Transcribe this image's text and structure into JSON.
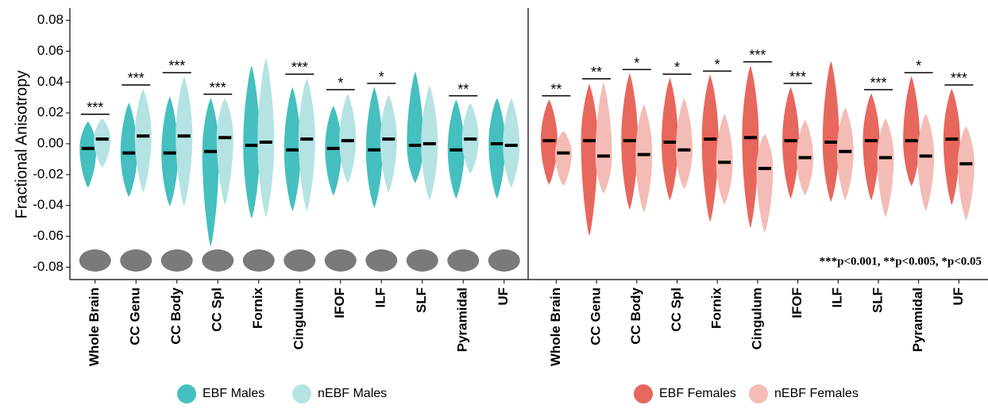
{
  "chart_data": [
    {
      "type": "violin",
      "ylabel": "Fractional Anisotropy",
      "categories": [
        "Whole Brain",
        "CC Genu",
        "CC Body",
        "CC Spl",
        "Fornix",
        "Cingulum",
        "IFOF",
        "ILF",
        "SLF",
        "Pyramidal",
        "UF"
      ],
      "ylim": [
        -0.088,
        0.088
      ],
      "yticks": [
        -0.08,
        -0.06,
        -0.04,
        -0.02,
        {
          "value": 0,
          "label": "0.00"
        },
        0.02,
        0.04,
        0.06,
        0.08
      ],
      "significance": [
        "***",
        "***",
        "***",
        "***",
        null,
        "***",
        "*",
        "*",
        null,
        "**",
        null
      ],
      "series": [
        {
          "name": "EBF Males",
          "color": "#45bfbf",
          "values": [
            -0.003,
            -0.006,
            -0.006,
            -0.005,
            -0.001,
            -0.004,
            -0.003,
            -0.004,
            -0.001,
            -0.004,
            0.0
          ],
          "min": [
            -0.028,
            -0.034,
            -0.04,
            -0.066,
            -0.048,
            -0.043,
            -0.033,
            -0.041,
            -0.025,
            -0.035,
            -0.035
          ],
          "max": [
            0.014,
            0.026,
            0.03,
            0.029,
            0.05,
            0.036,
            0.024,
            0.036,
            0.046,
            0.028,
            0.029
          ]
        },
        {
          "name": "nEBF Males",
          "color": "#b5e3e3",
          "values": [
            0.003,
            0.005,
            0.005,
            0.004,
            0.001,
            0.003,
            0.002,
            0.003,
            0.0,
            0.003,
            -0.001
          ],
          "min": [
            -0.015,
            -0.031,
            -0.04,
            -0.039,
            -0.047,
            -0.043,
            -0.025,
            -0.031,
            -0.036,
            -0.019,
            -0.028
          ],
          "max": [
            0.016,
            0.035,
            0.043,
            0.029,
            0.055,
            0.042,
            0.032,
            0.031,
            0.037,
            0.026,
            0.029
          ]
        }
      ]
    },
    {
      "type": "violin",
      "categories": [
        "Whole Brain",
        "CC Genu",
        "CC Body",
        "CC Spl",
        "Fornix",
        "Cingulum",
        "IFOF",
        "ILF",
        "SLF",
        "Pyramidal",
        "UF"
      ],
      "ylim": [
        -0.088,
        0.088
      ],
      "significance": [
        "**",
        "**",
        "*",
        "*",
        "*",
        "***",
        "***",
        null,
        "***",
        "*",
        "***"
      ],
      "note": "***p<0.001, **p<0.005, *p<0.05",
      "series": [
        {
          "name": "EBF Females",
          "color": "#e8675c",
          "values": [
            0.002,
            0.002,
            0.002,
            0.001,
            0.003,
            0.004,
            0.002,
            0.001,
            0.002,
            0.002,
            0.003
          ],
          "min": [
            -0.026,
            -0.059,
            -0.042,
            -0.036,
            -0.05,
            -0.054,
            -0.035,
            -0.037,
            -0.036,
            -0.027,
            -0.039
          ],
          "max": [
            0.028,
            0.038,
            0.045,
            0.042,
            0.044,
            0.05,
            0.036,
            0.053,
            0.032,
            0.043,
            0.035
          ]
        },
        {
          "name": "nEBF Females",
          "color": "#f4bcb6",
          "values": [
            -0.006,
            -0.008,
            -0.007,
            -0.004,
            -0.012,
            -0.016,
            -0.009,
            -0.005,
            -0.009,
            -0.008,
            -0.013
          ],
          "min": [
            -0.027,
            -0.032,
            -0.044,
            -0.029,
            -0.039,
            -0.057,
            -0.033,
            -0.036,
            -0.047,
            -0.043,
            -0.049
          ],
          "max": [
            0.008,
            0.039,
            0.025,
            0.029,
            0.019,
            0.006,
            0.015,
            0.023,
            0.016,
            0.019,
            0.011
          ]
        }
      ]
    }
  ]
}
